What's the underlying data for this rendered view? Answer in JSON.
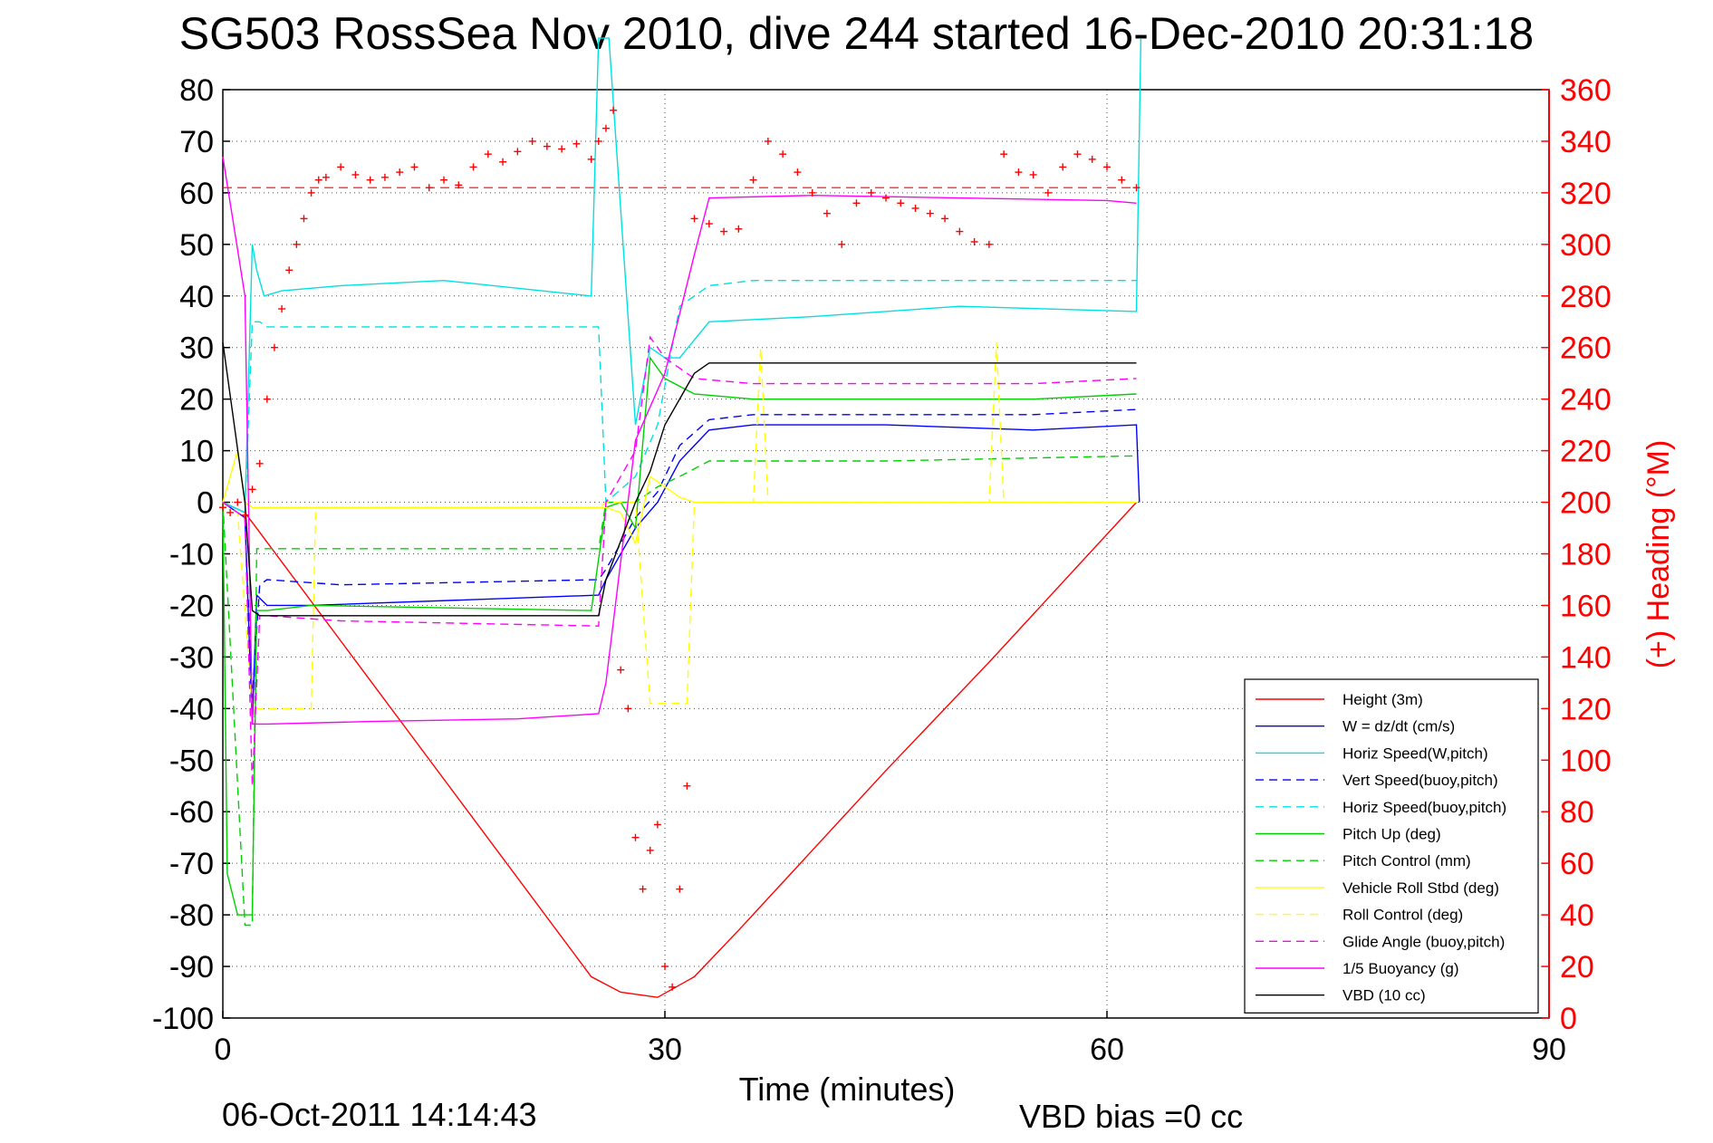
{
  "title": "SG503 RossSea Nov 2010, dive 244 started 16-Dec-2010 20:31:18",
  "footer": {
    "date": "06-Oct-2011 14:14:43",
    "vbd_bias": "VBD bias =0 cc"
  },
  "chart_data": {
    "type": "line",
    "xlabel": "Time (minutes)",
    "ylabel_left": "",
    "ylabel_right": "(+) Heading (°M)",
    "xlim": [
      0,
      90
    ],
    "ylim_left": [
      -100,
      80
    ],
    "ylim_right": [
      0,
      360
    ],
    "xticks": [
      0,
      30,
      60,
      90
    ],
    "yticks_left": [
      80,
      70,
      60,
      50,
      40,
      30,
      20,
      10,
      0,
      -10,
      -20,
      -30,
      -40,
      -50,
      -60,
      -70,
      -80,
      -90,
      -100
    ],
    "yticks_right": [
      360,
      340,
      320,
      300,
      280,
      260,
      240,
      220,
      200,
      180,
      160,
      140,
      120,
      100,
      80,
      60,
      40,
      20,
      0
    ],
    "grid": "dotted, at ticks",
    "legend_position": "bottom-right",
    "series": [
      {
        "name": "Height (3m)",
        "color": "#ff0000",
        "style": "solid",
        "x": [
          0,
          1.5,
          25,
          27,
          29.5,
          32,
          35,
          45,
          52,
          62
        ],
        "y": [
          0,
          -2,
          -92,
          -95,
          -96,
          -92,
          -83,
          -52,
          -31,
          0
        ]
      },
      {
        "name": "W = dz/dt (cm/s)",
        "color": "#0000ff",
        "style": "solid",
        "x": [
          0,
          1.5,
          2,
          2.3,
          3,
          6,
          25.5,
          26,
          28,
          29.5,
          31,
          33,
          36,
          45,
          55,
          62,
          62.2
        ],
        "y": [
          0,
          -3,
          -43,
          -18,
          -20,
          -20,
          -18,
          -15,
          -5,
          0,
          8,
          14,
          15,
          15,
          14,
          15,
          0
        ]
      },
      {
        "name": "Horiz Speed(W,pitch)",
        "color": "#00e0e0",
        "style": "solid",
        "x": [
          0,
          1.5,
          2,
          2.3,
          2.8,
          4,
          8,
          15,
          25,
          25.5,
          26.2,
          28,
          29,
          30,
          31,
          33,
          40,
          50,
          62,
          62.3
        ],
        "y": [
          0,
          -2,
          50,
          45,
          40,
          41,
          42,
          43,
          40,
          90,
          90,
          15,
          30,
          28,
          28,
          35,
          36,
          38,
          37,
          90
        ]
      },
      {
        "name": "Vert Speed(buoy,pitch)",
        "color": "#0000ff",
        "style": "dashed",
        "x": [
          0,
          1.5,
          2,
          2.5,
          3,
          8,
          25.5,
          26,
          28,
          29.5,
          31,
          33,
          36,
          45,
          55,
          62
        ],
        "y": [
          0,
          -3,
          -38,
          -16,
          -15,
          -16,
          -15,
          -13,
          -3,
          2,
          11,
          16,
          17,
          17,
          17,
          18
        ]
      },
      {
        "name": "Horiz Speed(buoy,pitch)",
        "color": "#00e0e0",
        "style": "dashed",
        "x": [
          0,
          1.5,
          2,
          2.5,
          3,
          8,
          25.5,
          26,
          28,
          29.5,
          31,
          33,
          36,
          45,
          55,
          62
        ],
        "y": [
          0,
          -2,
          35,
          35,
          34,
          34,
          34,
          0,
          5,
          15,
          38,
          42,
          43,
          43,
          43,
          43
        ]
      },
      {
        "name": "Pitch Up (deg)",
        "color": "#00d000",
        "style": "solid",
        "x": [
          0,
          0.3,
          1,
          1.5,
          2,
          2.3,
          3,
          6,
          25,
          26,
          27,
          28,
          29,
          30,
          32,
          36,
          45,
          55,
          62
        ],
        "y": [
          0,
          -72,
          -80,
          -80,
          -80,
          -21,
          -21,
          -20,
          -21,
          -1,
          0,
          -5,
          28,
          24,
          21,
          20,
          20,
          20,
          21
        ]
      },
      {
        "name": "Pitch Control (mm)",
        "color": "#00d000",
        "style": "dashed",
        "x": [
          0,
          1.5,
          2,
          2.3,
          8,
          25.5,
          26,
          28,
          29.5,
          31,
          33,
          45,
          62
        ],
        "y": [
          0,
          -82,
          -82,
          -9,
          -9,
          -9,
          0,
          0,
          3,
          5,
          8,
          8,
          9
        ]
      },
      {
        "name": "Vehicle Roll Stbd (deg)",
        "color": "#ffff00",
        "style": "solid",
        "x": [
          0,
          0.5,
          1,
          1.5,
          2,
          6.5,
          7,
          25,
          26,
          27,
          28,
          29,
          30,
          31,
          32,
          35,
          45,
          55,
          62
        ],
        "y": [
          0,
          5,
          10,
          0,
          -1,
          -1,
          -1,
          -1,
          -1,
          -2,
          -8,
          5,
          3,
          1,
          0,
          0,
          0,
          0,
          0
        ]
      },
      {
        "name": "Roll Control (deg)",
        "color": "#ffff00",
        "style": "dashed",
        "x": [
          0,
          1,
          2,
          2.5,
          6,
          6.3,
          25.5,
          26,
          28,
          29,
          31.5,
          32,
          36,
          36.5,
          37,
          52,
          52.5,
          53,
          62
        ],
        "y": [
          0,
          -2,
          -40,
          -40,
          -40,
          -1,
          -1,
          0,
          0,
          -39,
          -39,
          0,
          0,
          30,
          0,
          0,
          31,
          0,
          0
        ]
      },
      {
        "name": "Glide Angle (buoy,pitch)",
        "color": "#ff00ff",
        "style": "dashed",
        "x": [
          0,
          1.5,
          2,
          2.5,
          3,
          8,
          25.5,
          26,
          28,
          29,
          30,
          32,
          36,
          45,
          55,
          62
        ],
        "y": [
          0,
          -3,
          -55,
          -22,
          -22,
          -23,
          -24,
          0,
          10,
          32,
          28,
          24,
          23,
          23,
          23,
          24
        ]
      },
      {
        "name": "1/5 Buoyancy (g)",
        "color": "#ff00ff",
        "style": "solid",
        "x": [
          0,
          1.5,
          2,
          2.5,
          3,
          10,
          20,
          25.5,
          26,
          28,
          30,
          32,
          33,
          40,
          50,
          60,
          62
        ],
        "y": [
          67,
          40,
          -43,
          -43,
          -43,
          -42.5,
          -42,
          -41,
          -35,
          12,
          25,
          48,
          59,
          59.5,
          59,
          58.5,
          58
        ]
      },
      {
        "name": "VBD (10 cc)",
        "color": "#000000",
        "style": "solid",
        "x": [
          0,
          1.5,
          2,
          2.5,
          3,
          10,
          25.5,
          26,
          28,
          29,
          30,
          32,
          33,
          45,
          62
        ],
        "y": [
          31,
          0,
          -21,
          -22,
          -22,
          -22,
          -22,
          -15,
          0,
          6,
          15,
          25,
          27,
          27,
          27
        ]
      }
    ],
    "heading_series": {
      "name": "Heading",
      "marker": "+",
      "color": "#ff0000",
      "axis": "right",
      "reference_line": 322,
      "x": [
        0,
        0.5,
        1,
        1.5,
        2,
        2.5,
        3,
        3.5,
        4,
        4.5,
        5,
        5.5,
        6,
        6.5,
        7,
        8,
        9,
        10,
        11,
        12,
        13,
        14,
        15,
        16,
        17,
        18,
        19,
        20,
        21,
        22,
        23,
        24,
        25,
        25.5,
        26,
        26.5,
        27,
        27.5,
        28,
        28.5,
        29,
        29.5,
        30,
        30.5,
        31,
        31.5,
        32,
        33,
        34,
        35,
        36,
        37,
        38,
        39,
        40,
        41,
        42,
        43,
        44,
        45,
        46,
        47,
        48,
        49,
        50,
        51,
        52,
        53,
        54,
        55,
        56,
        57,
        58,
        59,
        60,
        61,
        62
      ],
      "y": [
        198,
        196,
        200,
        195,
        205,
        215,
        240,
        260,
        275,
        290,
        300,
        310,
        320,
        325,
        326,
        330,
        327,
        325,
        326,
        328,
        330,
        322,
        325,
        323,
        330,
        335,
        332,
        336,
        340,
        338,
        337,
        339,
        333,
        340,
        345,
        352,
        135,
        120,
        70,
        50,
        65,
        75,
        20,
        12,
        50,
        90,
        310,
        308,
        305,
        306,
        325,
        340,
        335,
        328,
        320,
        312,
        300,
        316,
        320,
        318,
        316,
        314,
        312,
        310,
        305,
        301,
        300,
        335,
        328,
        327,
        320,
        330,
        335,
        333,
        330,
        325,
        322
      ]
    }
  }
}
